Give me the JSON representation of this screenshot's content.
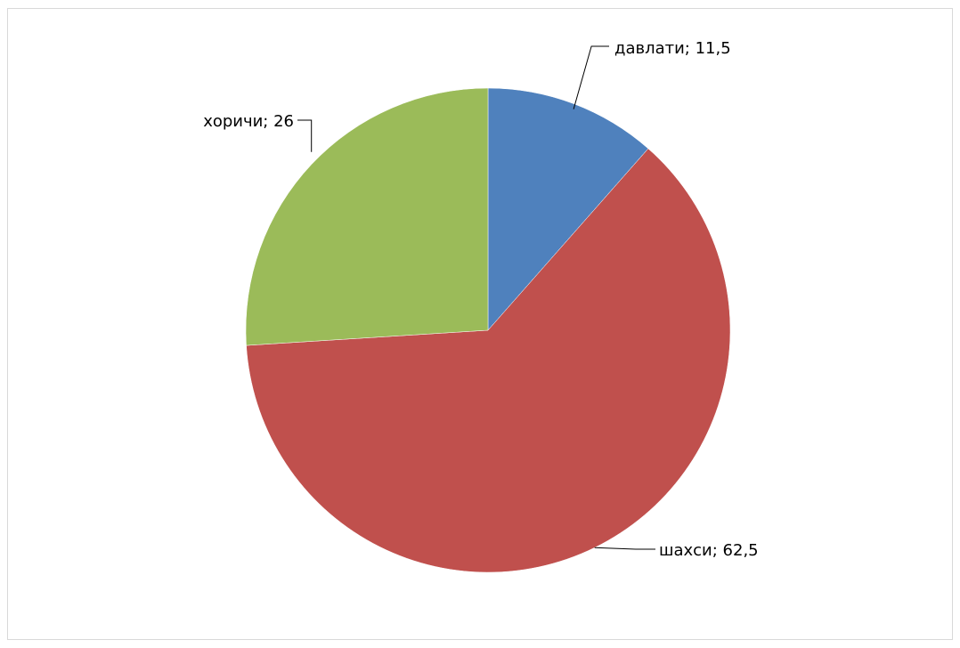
{
  "chart_data": {
    "type": "pie",
    "categories": [
      "давлати",
      "шахси",
      "хоричи"
    ],
    "values": [
      11.5,
      62.5,
      26
    ],
    "colors": [
      "#4f81bd",
      "#c0504d",
      "#9bbb59"
    ],
    "data_labels": [
      "давлати; 11,5",
      "шахси; 62,5",
      "хоричи; 26"
    ],
    "start_angle": "12 o'clock",
    "direction": "clockwise",
    "legend": "none",
    "title": ""
  }
}
